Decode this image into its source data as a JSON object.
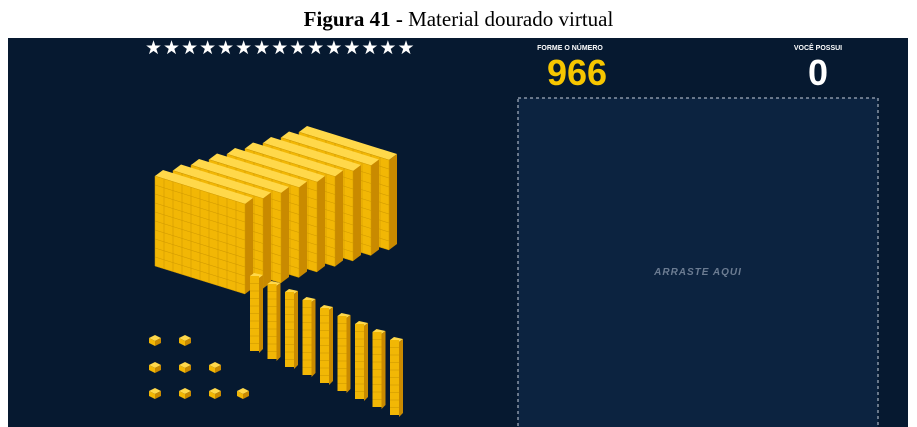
{
  "caption": {
    "label": "Figura 41 -",
    "title": "Material dourado virtual"
  },
  "game": {
    "stars": "★★★★★★★★★★★★★★★",
    "target_label": "FORME O NÚMERO",
    "target": 966,
    "have_label": "VOCÊ POSSUI",
    "have": 0,
    "drop_zone": "ARRASTE AQUI"
  }
}
